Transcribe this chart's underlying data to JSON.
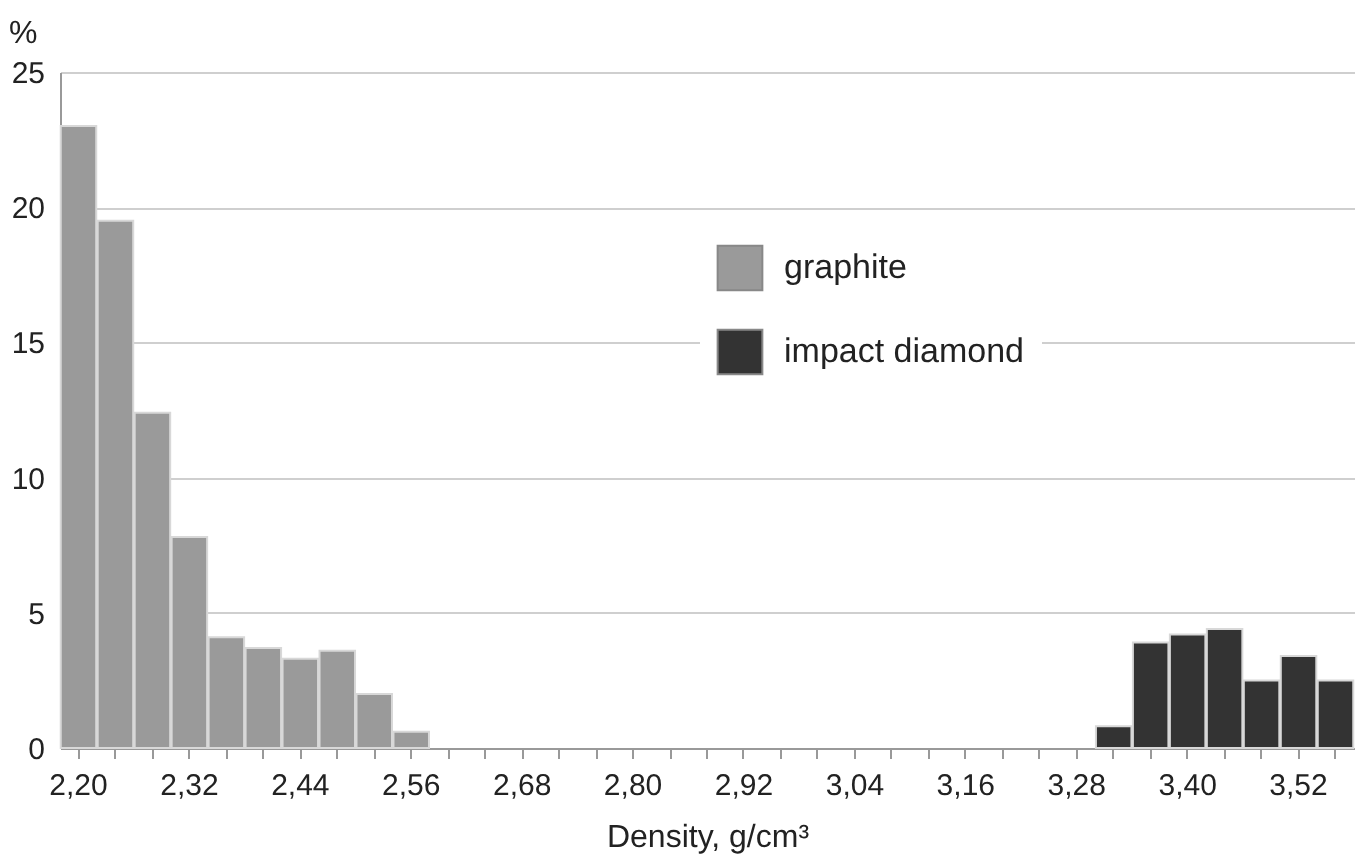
{
  "chart_data": {
    "type": "bar",
    "xlabel": "Density, g/cm³",
    "ylabel": "%",
    "categories": [
      "2,20",
      null,
      null,
      "2,32",
      null,
      null,
      "2,44",
      null,
      null,
      "2,56",
      null,
      null,
      "2,68",
      null,
      null,
      "2,80",
      null,
      null,
      "2,92",
      null,
      null,
      "3,04",
      null,
      null,
      "3,16",
      null,
      null,
      "3,28",
      null,
      null,
      "3,40",
      null,
      null,
      "3,52",
      null
    ],
    "series": [
      {
        "name": "graphite",
        "color": "#9a9a9a",
        "values": [
          23.0,
          19.5,
          12.4,
          7.8,
          4.1,
          3.7,
          3.3,
          3.6,
          2.0,
          0.6,
          null,
          null,
          null,
          null,
          null,
          null,
          null,
          null,
          null,
          null,
          null,
          null,
          null,
          null,
          null,
          null,
          null,
          null,
          null,
          null,
          null,
          null,
          null,
          null,
          null
        ]
      },
      {
        "name": "impact diamond",
        "color": "#333333",
        "values": [
          null,
          null,
          null,
          null,
          null,
          null,
          null,
          null,
          null,
          null,
          null,
          null,
          null,
          null,
          null,
          null,
          null,
          null,
          null,
          null,
          null,
          null,
          null,
          null,
          null,
          null,
          null,
          null,
          0.8,
          3.9,
          4.2,
          4.4,
          2.5,
          3.4,
          2.5
        ]
      }
    ],
    "ylim": [
      0,
      25
    ],
    "yticks": [
      0,
      5,
      10,
      15,
      20,
      25
    ],
    "grid": "y",
    "legend": "top right"
  }
}
